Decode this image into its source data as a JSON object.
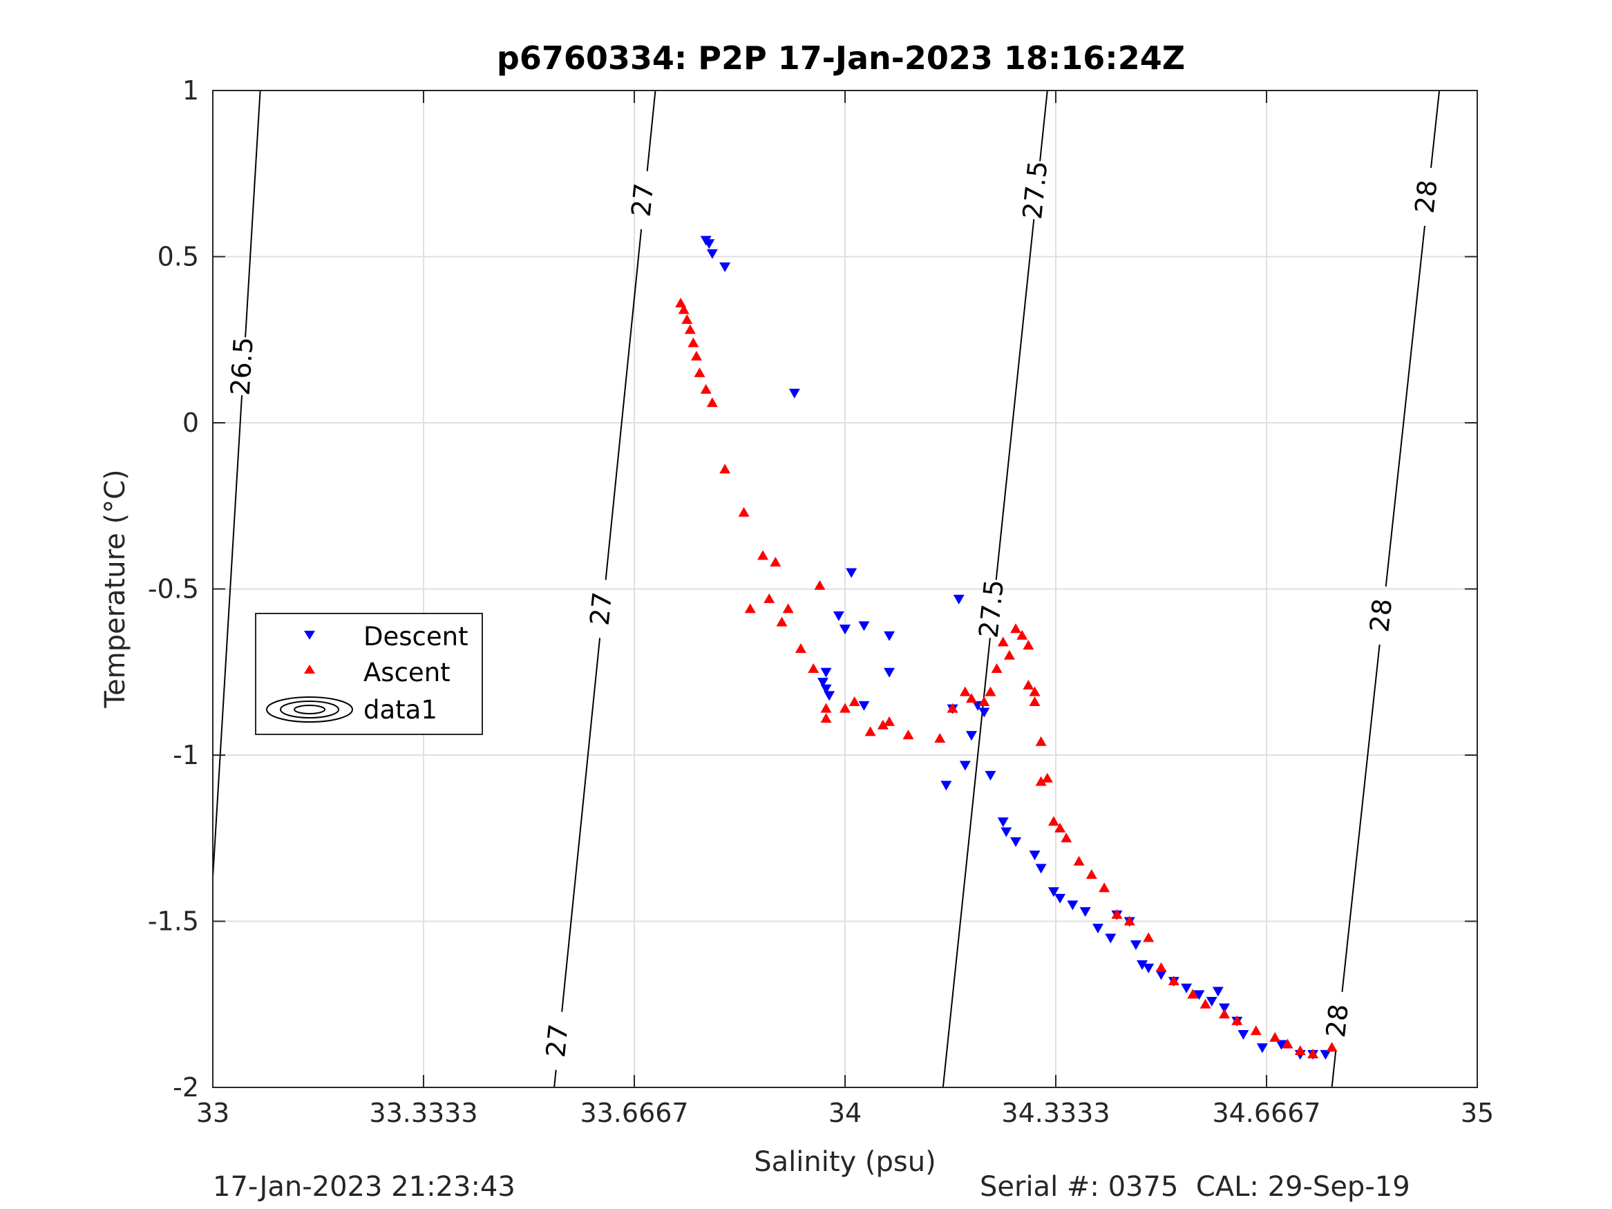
{
  "chart_data": {
    "type": "scatter",
    "title": "p6760334: P2P 17-Jan-2023 18:16:24Z",
    "xlabel": "Salinity (psu)",
    "ylabel": "Temperature (°C)",
    "xlim": [
      33,
      35
    ],
    "ylim": [
      -2,
      1
    ],
    "x_ticks": [
      "33",
      "33.3333",
      "33.6667",
      "34",
      "34.3333",
      "34.6667",
      "35"
    ],
    "x_tick_values": [
      33,
      33.3333,
      33.6667,
      34,
      34.3333,
      34.6667,
      35
    ],
    "y_ticks": [
      "-2",
      "-1.5",
      "-1",
      "-0.5",
      "0",
      "0.5",
      "1"
    ],
    "y_tick_values": [
      -2,
      -1.5,
      -1,
      -0.5,
      0,
      0.5,
      1
    ],
    "grid": true,
    "legend_position": "left",
    "legend": [
      "Descent",
      "Ascent",
      "data1"
    ],
    "colors": {
      "descent": "#0000ff",
      "ascent": "#ff0000",
      "contour": "#000000"
    },
    "series": [
      {
        "name": "Descent",
        "marker": "triangle-down",
        "x": [
          33.78,
          33.785,
          33.79,
          33.81,
          33.92,
          33.97,
          33.965,
          33.97,
          33.975,
          33.99,
          34.0,
          34.01,
          34.03,
          34.07,
          34.07,
          34.03,
          34.0,
          34.18,
          34.17,
          34.16,
          34.19,
          34.2,
          34.22,
          34.21,
          34.23,
          34.25,
          34.255,
          34.27,
          34.3,
          34.31,
          34.33,
          34.34,
          34.36,
          34.38,
          34.4,
          34.42,
          34.43,
          34.45,
          34.46,
          34.47,
          34.48,
          34.5,
          34.52,
          34.54,
          34.56,
          34.58,
          34.59,
          34.6,
          34.62,
          34.63,
          34.66,
          34.69,
          34.72,
          34.74,
          34.76
        ],
        "y": [
          0.55,
          0.54,
          0.51,
          0.47,
          0.09,
          -0.75,
          -0.78,
          -0.8,
          -0.82,
          -0.58,
          -0.62,
          -0.45,
          -0.61,
          -0.64,
          -0.75,
          -0.85,
          -0.62,
          -0.53,
          -0.86,
          -1.09,
          -1.03,
          -0.94,
          -0.87,
          -0.85,
          -1.06,
          -1.2,
          -1.23,
          -1.26,
          -1.3,
          -1.34,
          -1.41,
          -1.43,
          -1.45,
          -1.47,
          -1.52,
          -1.55,
          -1.48,
          -1.5,
          -1.57,
          -1.63,
          -1.64,
          -1.66,
          -1.68,
          -1.7,
          -1.72,
          -1.74,
          -1.71,
          -1.76,
          -1.8,
          -1.84,
          -1.88,
          -1.87,
          -1.9,
          -1.9,
          -1.9
        ]
      },
      {
        "name": "Ascent",
        "marker": "triangle-up",
        "x": [
          33.74,
          33.745,
          33.75,
          33.755,
          33.76,
          33.765,
          33.77,
          33.78,
          33.79,
          33.81,
          33.84,
          33.85,
          33.87,
          33.88,
          33.89,
          33.9,
          33.91,
          33.93,
          33.95,
          33.96,
          33.97,
          33.97,
          34.0,
          34.015,
          34.04,
          34.06,
          34.07,
          34.1,
          34.15,
          34.17,
          34.19,
          34.2,
          34.22,
          34.23,
          34.24,
          34.25,
          34.26,
          34.27,
          34.28,
          34.29,
          34.29,
          34.3,
          34.3,
          34.31,
          34.31,
          34.32,
          34.33,
          34.34,
          34.35,
          34.37,
          34.39,
          34.41,
          34.43,
          34.45,
          34.48,
          34.5,
          34.52,
          34.55,
          34.57,
          34.6,
          34.62,
          34.65,
          34.68,
          34.7,
          34.72,
          34.74,
          34.77
        ],
        "y": [
          0.36,
          0.34,
          0.31,
          0.28,
          0.24,
          0.2,
          0.15,
          0.1,
          0.06,
          -0.14,
          -0.27,
          -0.56,
          -0.4,
          -0.53,
          -0.42,
          -0.6,
          -0.56,
          -0.68,
          -0.74,
          -0.49,
          -0.86,
          -0.89,
          -0.86,
          -0.84,
          -0.93,
          -0.91,
          -0.9,
          -0.94,
          -0.95,
          -0.86,
          -0.81,
          -0.83,
          -0.84,
          -0.81,
          -0.74,
          -0.66,
          -0.7,
          -0.62,
          -0.64,
          -0.67,
          -0.79,
          -0.81,
          -0.84,
          -0.96,
          -1.08,
          -1.07,
          -1.2,
          -1.22,
          -1.25,
          -1.32,
          -1.36,
          -1.4,
          -1.48,
          -1.5,
          -1.55,
          -1.64,
          -1.68,
          -1.72,
          -1.75,
          -1.78,
          -1.8,
          -1.83,
          -1.85,
          -1.87,
          -1.89,
          -1.9,
          -1.88
        ]
      }
    ],
    "contours": [
      {
        "label": "26.5",
        "x_top": 33.075,
        "x_bottom": 32.98,
        "label_y": 0.17
      },
      {
        "label": "27",
        "x_top": 33.7,
        "x_bottom": 33.54,
        "label_positions": [
          0.67,
          -0.56,
          -1.86
        ]
      },
      {
        "label": "27.5",
        "x_top": 34.32,
        "x_bottom": 34.155,
        "label_positions": [
          0.7,
          -0.56
        ]
      },
      {
        "label": "28",
        "x_top": 34.94,
        "x_bottom": 34.77,
        "label_positions": [
          0.68,
          -0.58,
          -1.8
        ]
      }
    ]
  },
  "footer": {
    "left": "17-Jan-2023 21:23:43",
    "right": "Serial #: 0375  CAL: 29-Sep-19"
  }
}
